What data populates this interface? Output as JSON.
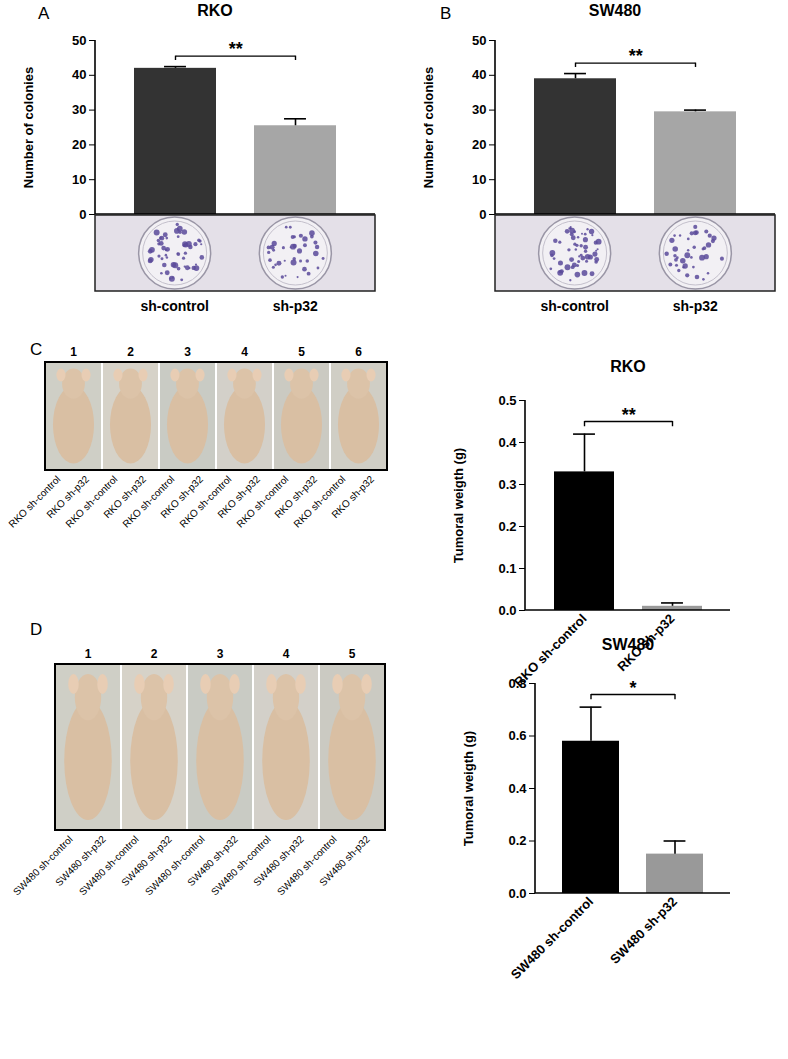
{
  "chart_data": [
    {
      "panel": "A",
      "type": "bar",
      "title": "RKO",
      "ylabel": "Number of colonies",
      "categories": [
        "sh-control",
        "sh-p32"
      ],
      "values": [
        42,
        25.5
      ],
      "errors": [
        0.5,
        2
      ],
      "colors": [
        "#333333",
        "#a6a6a6"
      ],
      "ylim": [
        0,
        50
      ],
      "yticks": [
        0,
        10,
        20,
        30,
        40,
        50
      ],
      "annotations": [
        {
          "text": "**",
          "between": [
            "sh-control",
            "sh-p32"
          ]
        }
      ]
    },
    {
      "panel": "B",
      "type": "bar",
      "title": "SW480",
      "ylabel": "Number of colonies",
      "categories": [
        "sh-control",
        "sh-p32"
      ],
      "values": [
        39,
        29.5
      ],
      "errors": [
        1.5,
        0.5
      ],
      "colors": [
        "#333333",
        "#a6a6a6"
      ],
      "ylim": [
        0,
        50
      ],
      "yticks": [
        0,
        10,
        20,
        30,
        40,
        50
      ],
      "annotations": [
        {
          "text": "**",
          "between": [
            "sh-control",
            "sh-p32"
          ]
        }
      ]
    },
    {
      "panel": "C",
      "type": "bar",
      "title": "RKO",
      "ylabel": "Tumoral weigth (g)",
      "categories": [
        "RKO sh-control",
        "RKO sh-p32"
      ],
      "values": [
        0.33,
        0.01
      ],
      "errors": [
        0.09,
        0.008
      ],
      "colors": [
        "#000000",
        "#999999"
      ],
      "ylim": [
        0,
        0.5
      ],
      "yticks": [
        {
          "value": 0,
          "label": "0.0"
        },
        0.1,
        0.2,
        0.3,
        0.4,
        0.5
      ],
      "annotations": [
        {
          "text": "**",
          "between": [
            "RKO sh-control",
            "RKO sh-p32"
          ]
        }
      ],
      "photos": {
        "numbers": [
          "1",
          "2",
          "3",
          "4",
          "5",
          "6"
        ],
        "labels": [
          [
            "RKO sh-control",
            "RKO sh-p32"
          ],
          [
            "RKO sh-control",
            "RKO sh-p32"
          ],
          [
            "RKO sh-control",
            "RKO sh-p32"
          ],
          [
            "RKO sh-control",
            "RKO sh-p32"
          ],
          [
            "RKO sh-control",
            "RKO sh-p32"
          ],
          [
            "RKO sh-control",
            "RKO sh-p32"
          ]
        ]
      }
    },
    {
      "panel": "D",
      "type": "bar",
      "title": "SW480",
      "ylabel": "Tumoral weigth (g)",
      "categories": [
        "SW480 sh-control",
        "SW480 sh-p32"
      ],
      "values": [
        0.58,
        0.15
      ],
      "errors": [
        0.13,
        0.05
      ],
      "colors": [
        "#000000",
        "#999999"
      ],
      "ylim": [
        0,
        0.8
      ],
      "yticks": [
        {
          "value": 0,
          "label": "0.0"
        },
        0.2,
        0.4,
        0.6,
        0.8
      ],
      "annotations": [
        {
          "text": "*",
          "between": [
            "SW480 sh-control",
            "SW480 sh-p32"
          ]
        }
      ],
      "photos": {
        "numbers": [
          "1",
          "2",
          "3",
          "4",
          "5"
        ],
        "labels": [
          [
            "SW480 sh-control",
            "SW480 sh-p32"
          ],
          [
            "SW480 sh-control",
            "SW480 sh-p32"
          ],
          [
            "SW480 sh-control",
            "SW480 sh-p32"
          ],
          [
            "SW480 sh-control",
            "SW480 sh-p32"
          ],
          [
            "SW480 sh-control",
            "SW480 sh-p32"
          ]
        ]
      }
    }
  ]
}
